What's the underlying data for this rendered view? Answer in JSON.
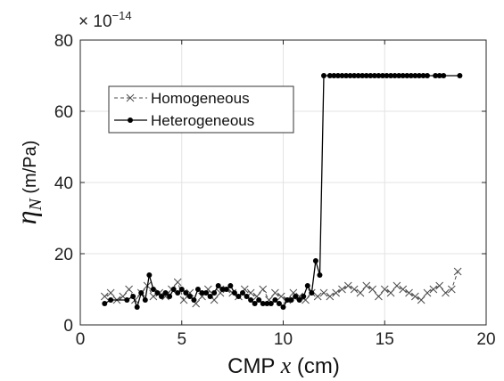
{
  "chart_data": {
    "type": "line",
    "xlabel": "CMP x (cm)",
    "ylabel": "ηN (m/Pa)",
    "x_tick_labels": [
      "0",
      "5",
      "10",
      "15",
      "20"
    ],
    "y_tick_labels": [
      "0",
      "20",
      "40",
      "60",
      "80"
    ],
    "y_exponent_label": "× 10",
    "y_exponent": "−14",
    "xlim": [
      0,
      20
    ],
    "ylim": [
      0,
      80
    ],
    "grid": true,
    "legend_position": "upper-left",
    "series": [
      {
        "name": "Homogeneous",
        "color": "#4d4d4d",
        "line": "dashed",
        "marker": "x",
        "x": [
          1.2,
          1.5,
          1.8,
          2.1,
          2.4,
          2.7,
          3.0,
          3.3,
          3.6,
          3.9,
          4.2,
          4.5,
          4.8,
          5.1,
          5.4,
          5.7,
          6.0,
          6.3,
          6.6,
          6.9,
          7.2,
          7.5,
          7.8,
          8.1,
          8.4,
          8.7,
          9.0,
          9.3,
          9.6,
          9.9,
          10.2,
          10.5,
          10.8,
          11.1,
          11.4,
          11.7,
          12.0,
          12.3,
          12.6,
          12.9,
          13.2,
          13.5,
          13.8,
          14.1,
          14.4,
          14.7,
          15.0,
          15.3,
          15.6,
          15.9,
          16.2,
          16.5,
          16.8,
          17.1,
          17.4,
          17.7,
          18.0,
          18.3,
          18.6
        ],
        "y": [
          8,
          9,
          7,
          8,
          10,
          7,
          9,
          11,
          8,
          9,
          8,
          10,
          12,
          7,
          9,
          6,
          8,
          10,
          7,
          9,
          10,
          9,
          8,
          10,
          9,
          8,
          10,
          7,
          9,
          8,
          7,
          9,
          8,
          7,
          9,
          8,
          9,
          8,
          9,
          10,
          11,
          10,
          9,
          11,
          10,
          8,
          10,
          9,
          11,
          10,
          9,
          8,
          7,
          9,
          10,
          11,
          9,
          10,
          15
        ]
      },
      {
        "name": "Heterogeneous",
        "color": "#000000",
        "line": "solid",
        "marker": "dot",
        "x": [
          1.2,
          1.5,
          2.3,
          2.6,
          2.8,
          3.0,
          3.2,
          3.4,
          3.6,
          3.8,
          4.0,
          4.2,
          4.4,
          4.6,
          4.8,
          5.0,
          5.2,
          5.4,
          5.6,
          5.8,
          6.0,
          6.2,
          6.4,
          6.6,
          6.8,
          7.0,
          7.2,
          7.4,
          7.6,
          7.8,
          8.0,
          8.2,
          8.4,
          8.6,
          8.8,
          9.0,
          9.2,
          9.4,
          9.6,
          9.8,
          10.0,
          10.2,
          10.4,
          10.6,
          10.8,
          11.0,
          11.2,
          11.4,
          11.6,
          11.8,
          12.0,
          12.3,
          12.5,
          12.7,
          12.9,
          13.1,
          13.3,
          13.5,
          13.7,
          13.9,
          14.1,
          14.3,
          14.5,
          14.7,
          14.9,
          15.1,
          15.3,
          15.5,
          15.7,
          15.9,
          16.1,
          16.3,
          16.5,
          16.7,
          16.9,
          17.1,
          17.5,
          17.7,
          17.9,
          18.7
        ],
        "y": [
          6,
          7,
          7,
          8,
          5,
          9,
          7,
          14,
          10,
          9,
          8,
          9,
          8,
          10,
          9,
          10,
          9,
          8,
          7,
          10,
          9,
          9,
          8,
          9,
          11,
          10,
          10,
          11,
          9,
          8,
          9,
          8,
          7,
          6,
          7,
          6,
          6,
          6,
          7,
          6,
          5,
          7,
          7,
          8,
          7,
          8,
          11,
          9,
          18,
          14,
          70,
          70,
          70,
          70,
          70,
          70,
          70,
          70,
          70,
          70,
          70,
          70,
          70,
          70,
          70,
          70,
          70,
          70,
          70,
          70,
          70,
          70,
          70,
          70,
          70,
          70,
          70,
          70,
          70,
          70
        ]
      }
    ]
  }
}
